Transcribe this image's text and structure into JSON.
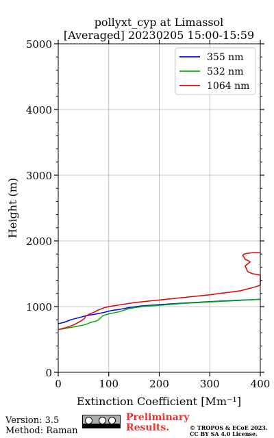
{
  "chart_data": {
    "type": "line",
    "title": "pollyxt_cyp at Limassol",
    "subtitle": "[Averaged] 20230205 15:00-15:59",
    "xlabel": "Extinction Coefficient [Mm⁻¹]",
    "ylabel": "Height (m)",
    "xlim": [
      0,
      400
    ],
    "ylim": [
      0,
      5000
    ],
    "xticks": [
      0,
      100,
      200,
      300,
      400
    ],
    "yticks": [
      0,
      1000,
      2000,
      3000,
      4000,
      5000
    ],
    "grid": true,
    "legend_position": "top-right",
    "series": [
      {
        "name": "355 nm",
        "color": "#0000ff",
        "x": [
          0,
          12,
          25,
          40,
          55,
          70,
          90,
          105,
          120,
          140,
          165,
          200,
          250,
          300,
          350,
          400
        ],
        "y": [
          740,
          760,
          800,
          830,
          860,
          880,
          910,
          940,
          955,
          985,
          1010,
          1030,
          1055,
          1075,
          1095,
          1110
        ]
      },
      {
        "name": "532 nm",
        "color": "#00b000",
        "x": [
          0,
          15,
          30,
          45,
          55,
          65,
          75,
          80,
          88,
          100,
          120,
          140,
          165,
          200,
          250,
          300,
          350,
          400
        ],
        "y": [
          650,
          670,
          690,
          710,
          730,
          760,
          780,
          800,
          860,
          890,
          920,
          970,
          1000,
          1020,
          1050,
          1070,
          1090,
          1110
        ]
      },
      {
        "name": "1064 nm",
        "color": "#e00000",
        "x": [
          0,
          15,
          30,
          45,
          52,
          55,
          60,
          70,
          80,
          90,
          100,
          125,
          150,
          175,
          200,
          225,
          250,
          275,
          300,
          320,
          340,
          360,
          375,
          390,
          398,
          400,
          400,
          385,
          375,
          372,
          370,
          375,
          380,
          376,
          370,
          368,
          365,
          368,
          374,
          385,
          398,
          400
        ],
        "y": [
          650,
          680,
          720,
          780,
          820,
          860,
          880,
          910,
          950,
          980,
          1000,
          1030,
          1060,
          1080,
          1100,
          1120,
          1140,
          1160,
          1180,
          1200,
          1220,
          1240,
          1270,
          1300,
          1320,
          1330,
          1480,
          1500,
          1530,
          1580,
          1620,
          1650,
          1680,
          1700,
          1720,
          1750,
          1780,
          1800,
          1810,
          1820,
          1820,
          1820
        ]
      }
    ]
  },
  "footer": {
    "version": "Version: 3.5",
    "method": "Method: Raman",
    "preliminary_line1": "Preliminary",
    "preliminary_line2": "Results.",
    "copyright_line1": "© TROPOS & ECoE 2023.",
    "copyright_line2": "CC BY SA 4.0 License."
  }
}
